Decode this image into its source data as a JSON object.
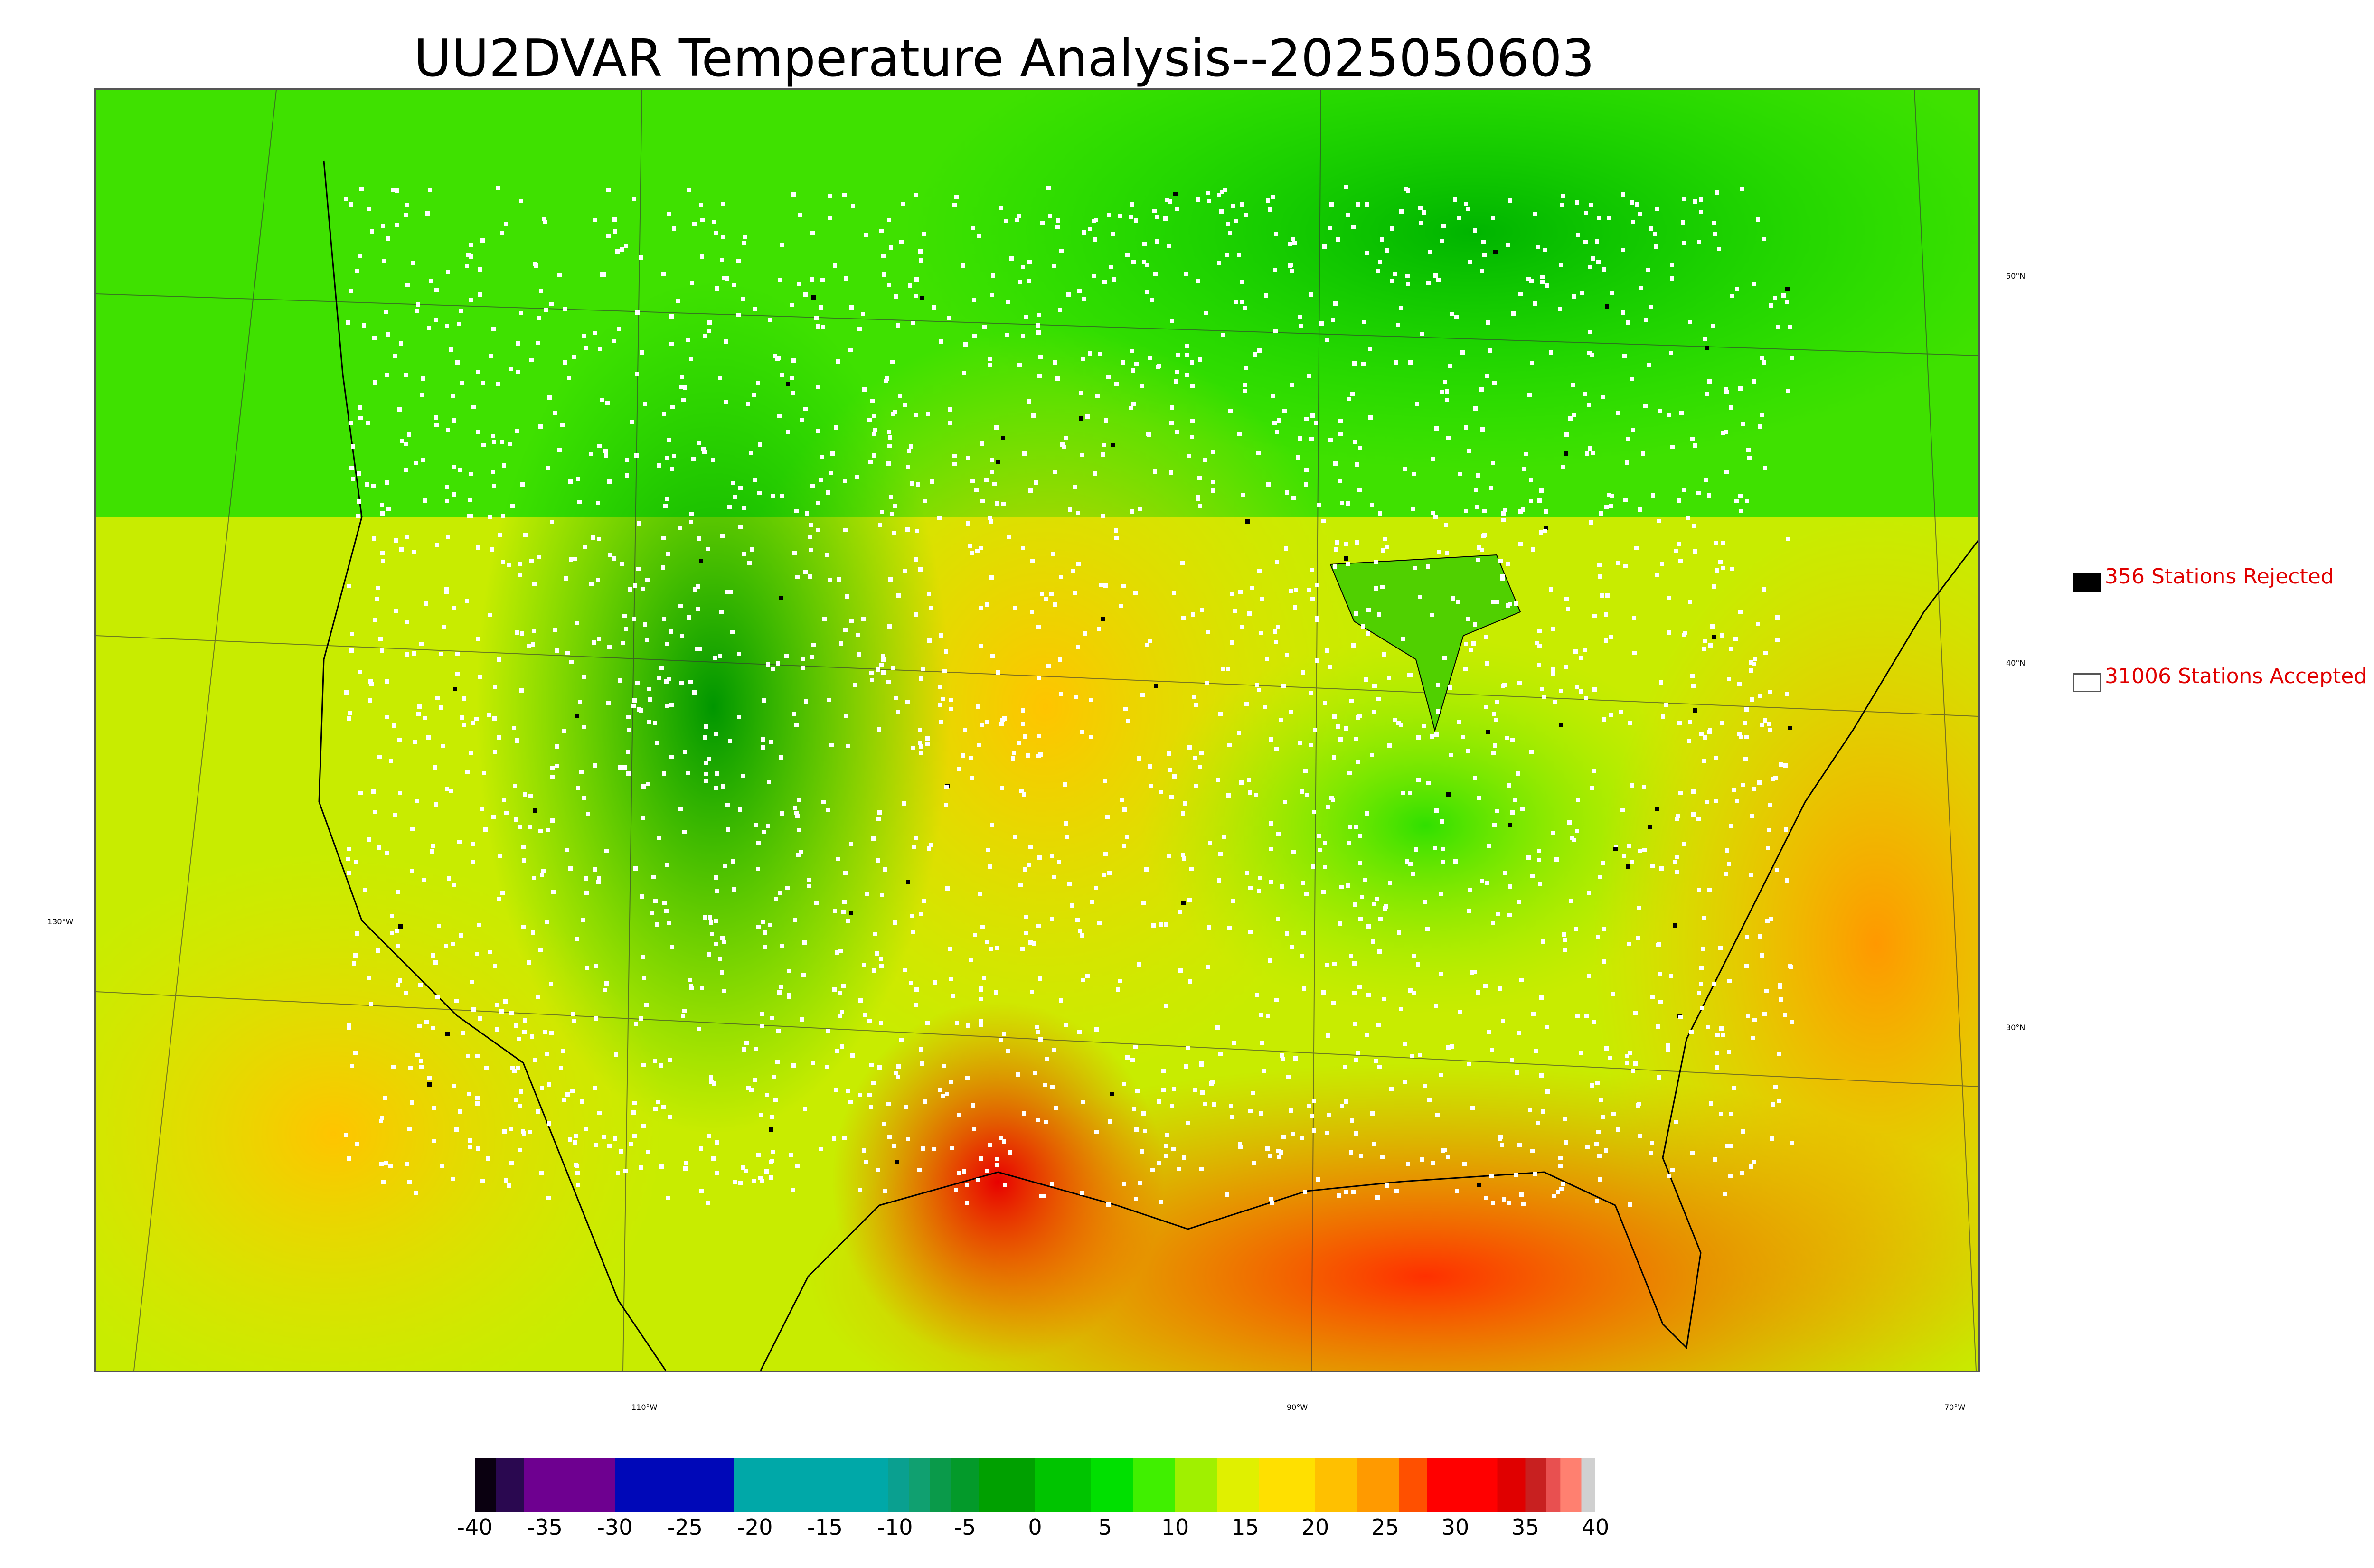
{
  "title": "UU2DVAR Temperature Analysis--2025050603",
  "legend": {
    "rejected": {
      "label": "356 Stations Rejected",
      "count": 356,
      "swatch_color": "#000000"
    },
    "accepted": {
      "label": "31006 Stations Accepted",
      "count": 31006,
      "swatch_color": "#ffffff"
    }
  },
  "graticule": {
    "lat_labels": [
      "50°N",
      "40°N",
      "30°N"
    ],
    "lon_labels": [
      "130°W",
      "110°W",
      "90°W",
      "70°W"
    ]
  },
  "colorbar": {
    "ticks": [
      "-40",
      "-35",
      "-30",
      "-25",
      "-20",
      "-15",
      "-10",
      "-5",
      "0",
      "5",
      "10",
      "15",
      "20",
      "25",
      "30",
      "35",
      "40"
    ],
    "range": [
      -40,
      40
    ],
    "segments": [
      {
        "from": -40,
        "to": -38.5,
        "color": "#0a0010"
      },
      {
        "from": -38.5,
        "to": -36.5,
        "color": "#2a0850"
      },
      {
        "from": -36.5,
        "to": -30,
        "color": "#6e0090"
      },
      {
        "from": -30,
        "to": -21.5,
        "color": "#0008b8"
      },
      {
        "from": -21.5,
        "to": -10.5,
        "color": "#00a8a8"
      },
      {
        "from": -10.5,
        "to": -9,
        "color": "#0aa090"
      },
      {
        "from": -9,
        "to": -7.5,
        "color": "#10a070"
      },
      {
        "from": -7.5,
        "to": -6,
        "color": "#0a9a4a"
      },
      {
        "from": -6,
        "to": -4,
        "color": "#039a2a"
      },
      {
        "from": -4,
        "to": 0,
        "color": "#00a000"
      },
      {
        "from": 0,
        "to": 4,
        "color": "#00c400"
      },
      {
        "from": 4,
        "to": 7,
        "color": "#00e000"
      },
      {
        "from": 7,
        "to": 10,
        "color": "#40f000"
      },
      {
        "from": 10,
        "to": 13,
        "color": "#a0f000"
      },
      {
        "from": 13,
        "to": 16,
        "color": "#e0f000"
      },
      {
        "from": 16,
        "to": 20,
        "color": "#ffe000"
      },
      {
        "from": 20,
        "to": 23,
        "color": "#ffc000"
      },
      {
        "from": 23,
        "to": 26,
        "color": "#ff9a00"
      },
      {
        "from": 26,
        "to": 28,
        "color": "#ff5000"
      },
      {
        "from": 28,
        "to": 33,
        "color": "#ff0000"
      },
      {
        "from": 33,
        "to": 35,
        "color": "#e00000"
      },
      {
        "from": 35,
        "to": 36.5,
        "color": "#c82020"
      },
      {
        "from": 36.5,
        "to": 37.5,
        "color": "#e85050"
      },
      {
        "from": 37.5,
        "to": 39,
        "color": "#ff8070"
      },
      {
        "from": 39,
        "to": 40,
        "color": "#d0d0d0"
      }
    ]
  },
  "colors": {
    "background": "#ffffff",
    "legend_text": "#e00000",
    "rejected_station": "#000000",
    "accepted_station": "#ffffff",
    "coastline": "#000000",
    "graticule": "#333333"
  }
}
